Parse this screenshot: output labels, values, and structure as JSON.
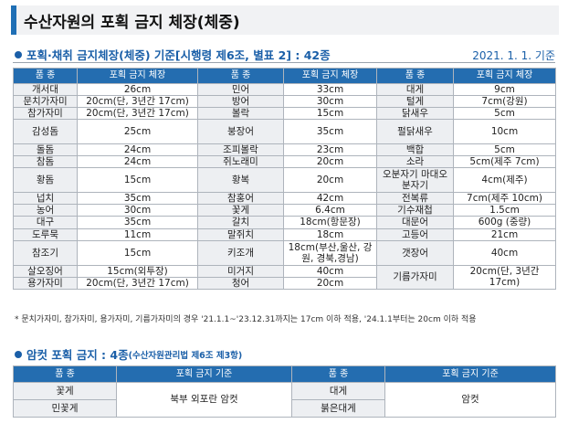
{
  "page": {
    "title": "수산자원의 포획 금지 체장(체중)"
  },
  "section1": {
    "heading": "포획·채취 금지체장(체중) 기준[시행령 제6조, 별표 2] : 42종",
    "date": "2021. 1. 1. 기준",
    "headers": [
      "품 종",
      "포획 금지 체장",
      "품 종",
      "포획 금지 체장",
      "품 종",
      "포획 금지 체장"
    ],
    "rows": [
      [
        [
          "개서대",
          "26cm"
        ],
        [
          "민어",
          "33cm"
        ],
        [
          "대게",
          "9cm"
        ]
      ],
      [
        [
          "문치가자미",
          "20cm(단, 3년간 17cm)"
        ],
        [
          "방어",
          "30cm"
        ],
        [
          "털게",
          "7cm(강원)"
        ]
      ],
      [
        [
          "참가자미",
          "20cm(단, 3년간 17cm)"
        ],
        [
          "볼락",
          "15cm"
        ],
        [
          "닭새우",
          "5cm"
        ]
      ],
      [
        [
          "감성돔",
          "25cm"
        ],
        [
          "붕장어",
          "35cm"
        ],
        [
          "펄닭새우",
          "10cm"
        ]
      ],
      [
        [
          "돌돔",
          "24cm"
        ],
        [
          "조피볼락",
          "23cm"
        ],
        [
          "백합",
          "5cm"
        ]
      ],
      [
        [
          "참돔",
          "24cm"
        ],
        [
          "쥐노래미",
          "20cm"
        ],
        [
          "소라",
          "5cm(제주 7cm)"
        ]
      ],
      [
        [
          "황돔",
          "15cm"
        ],
        [
          "황복",
          "20cm"
        ],
        [
          "오분자기 마대오분자기",
          "4cm(제주)"
        ]
      ],
      [
        [
          "넙치",
          "35cm"
        ],
        [
          "참홍어",
          "42cm"
        ],
        [
          "전복류",
          "7cm(제주 10cm)"
        ]
      ],
      [
        [
          "농어",
          "30cm"
        ],
        [
          "꽃게",
          "6.4cm"
        ],
        [
          "기수재첩",
          "1.5cm"
        ]
      ],
      [
        [
          "대구",
          "35cm"
        ],
        [
          "갈치",
          "18cm(항문장)"
        ],
        [
          "대문어",
          "600g (중량)"
        ]
      ],
      [
        [
          "도루묵",
          "11cm"
        ],
        [
          "말쥐치",
          "18cm"
        ],
        [
          "고등어",
          "21cm"
        ]
      ],
      [
        [
          "참조기",
          "15cm"
        ],
        [
          "키조개",
          "18cm(부산,울산, 강원, 경북,경남)"
        ],
        [
          "갯장어",
          "40cm"
        ]
      ],
      [
        [
          "살오징어",
          "15cm(외투장)"
        ],
        [
          "미거지",
          "40cm"
        ],
        [
          "기름가자미",
          "20cm(단, 3년간 17cm)"
        ]
      ],
      [
        [
          "용가자미",
          "20cm(단, 3년간 17cm)"
        ],
        [
          "청어",
          "20cm"
        ],
        null
      ]
    ],
    "note": "* 문치가자미, 참가자미, 용가자미, 기름가자미의 경우 '21.1.1~'23.12.31까지는 17cm 이하 적용, '24.1.1부터는 20cm 이하 적용"
  },
  "section2": {
    "heading": "암컷 포획 금지 : 4종",
    "subheading": "(수산자원관리법 제6조 제3항)",
    "headers": [
      "품 종",
      "포획 금지 기준",
      "품 종",
      "포획 금지 기준"
    ],
    "left_species": [
      "꽃게",
      "민꽃게"
    ],
    "left_rule": "북부 외포란 암컷",
    "right_species": [
      "대게",
      "붉은대게"
    ],
    "right_rule": "암컷"
  },
  "colors": {
    "header_bg": "#246db0",
    "accent": "#1a5fa8",
    "name_cell_bg": "#edeff2"
  }
}
